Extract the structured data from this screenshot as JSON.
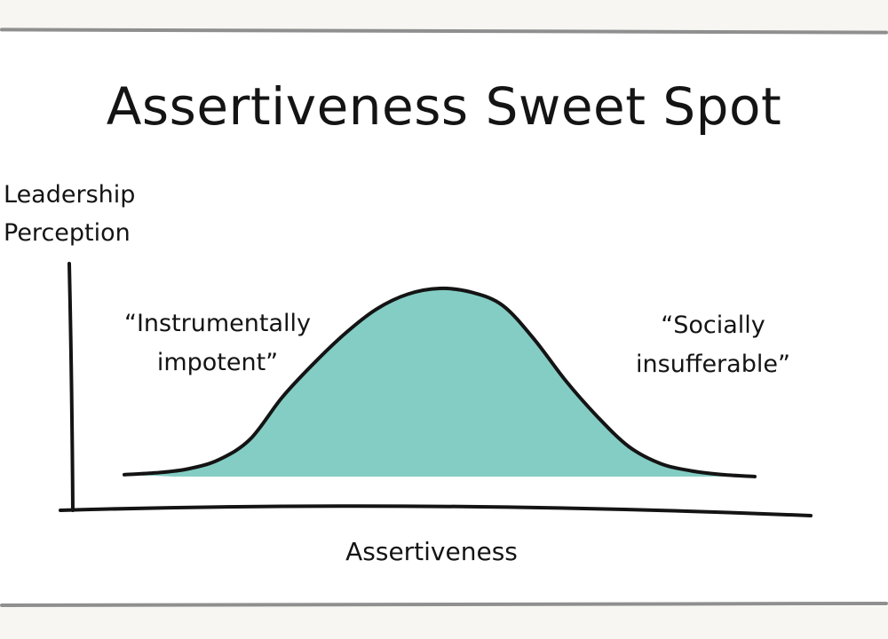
{
  "chart_data": {
    "type": "area",
    "title": "Assertiveness Sweet Spot",
    "xlabel": "Assertiveness",
    "ylabel": [
      "Leadership",
      "Perception"
    ],
    "xlim": [
      0,
      100
    ],
    "ylim": [
      0,
      100
    ],
    "grid": false,
    "legend": "none",
    "x": [
      0,
      5,
      10,
      15,
      20,
      25,
      30,
      35,
      40,
      45,
      50,
      55,
      60,
      65,
      70,
      75,
      80,
      85,
      90,
      95,
      100
    ],
    "series": [
      {
        "values": [
          1,
          2,
          4,
          9,
          20,
          42,
          60,
          76,
          89,
          97,
          100,
          98,
          91,
          73,
          51,
          32,
          16,
          7,
          3,
          1,
          0
        ]
      }
    ],
    "annotations": [
      {
        "lines": [
          "“Instrumentally",
          "impotent”"
        ],
        "side": "left"
      },
      {
        "lines": [
          "“Socially",
          "insufferable”"
        ],
        "side": "right"
      }
    ],
    "colors": {
      "fill": "#83cdc4",
      "stroke": "#141414",
      "text": "#141414",
      "frame": "#8f8f8f"
    }
  }
}
